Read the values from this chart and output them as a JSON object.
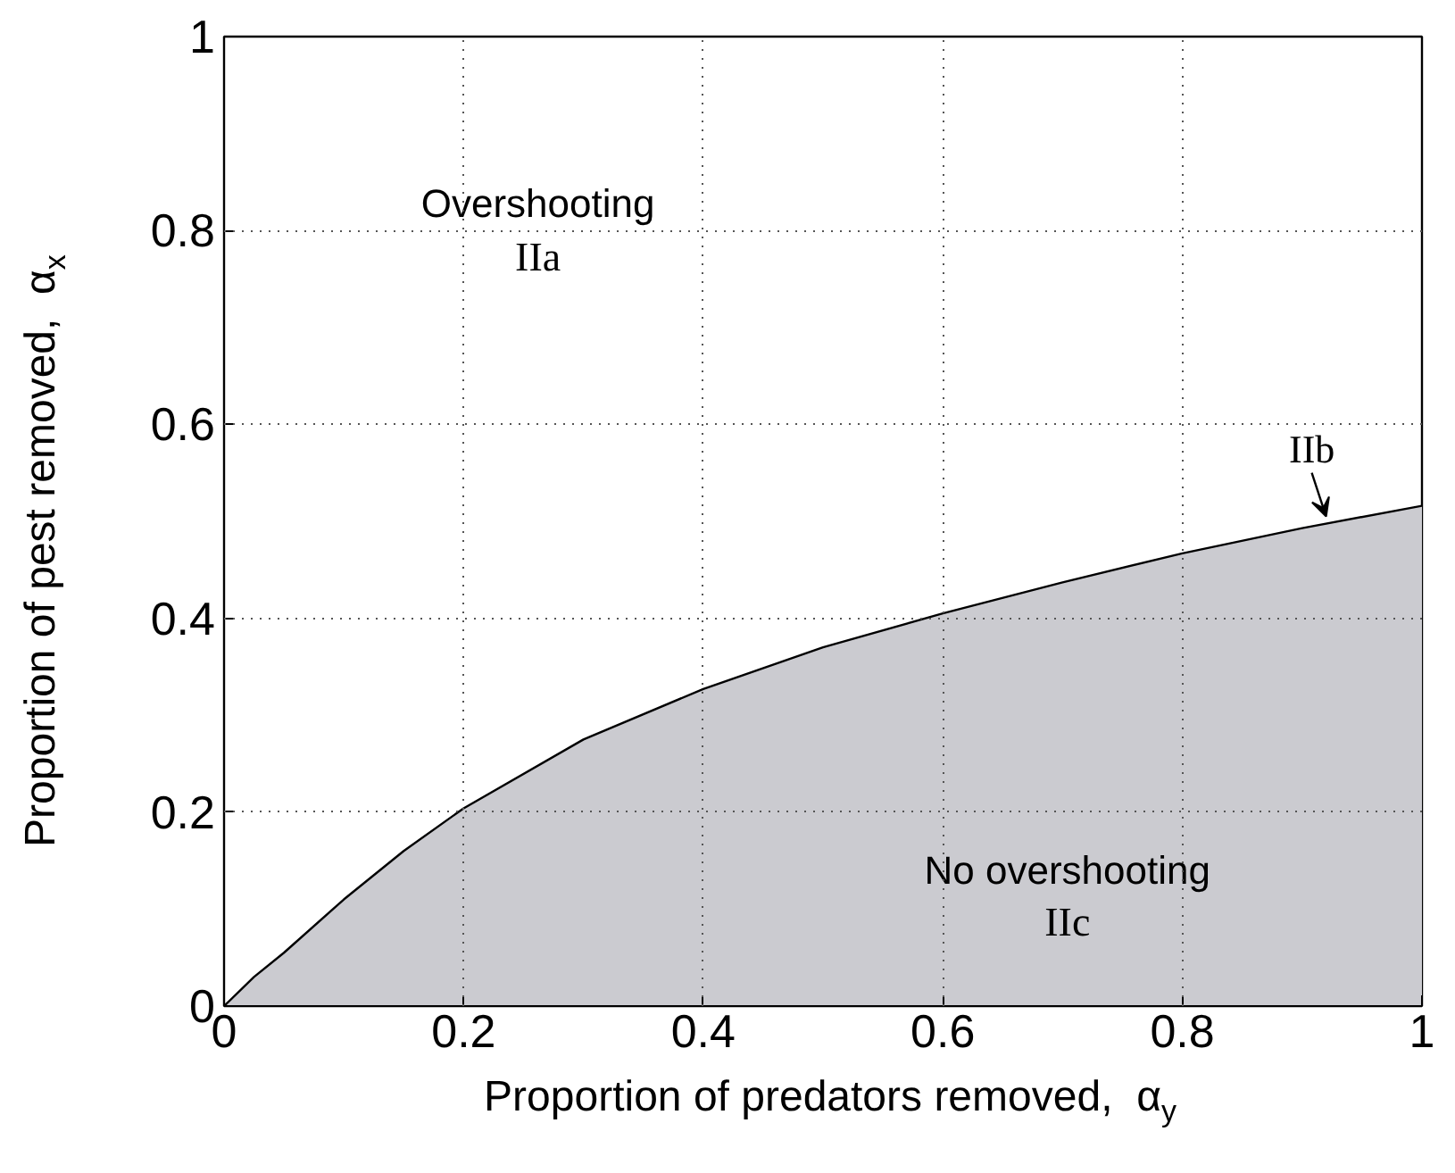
{
  "chart_data": {
    "type": "area",
    "xlabel": "Proportion of predators removed,  α$_{y}$",
    "ylabel": "Proportion of pest removed,  α$_{x}$",
    "x": [
      0,
      0.025,
      0.05,
      0.1,
      0.15,
      0.2,
      0.3,
      0.4,
      0.5,
      0.6,
      0.7,
      0.8,
      0.9,
      1
    ],
    "series": [
      {
        "color": "#cbcbd0",
        "values": [
          0,
          0.03,
          0.055,
          0.11,
          0.16,
          0.204,
          0.275,
          0.327,
          0.37,
          0.405,
          0.437,
          0.467,
          0.493,
          0.516
        ]
      }
    ],
    "xlim": [
      0,
      1
    ],
    "ylim": [
      0,
      1
    ],
    "xticks": [
      0,
      0.2,
      0.4,
      0.6,
      0.8,
      1
    ],
    "yticks": [
      0,
      0.2,
      0.4,
      0.6,
      0.8,
      1
    ],
    "grid": true,
    "annotations": [
      "Overshooting",
      "IIa",
      "No overshooting",
      "IIc",
      {
        "text": "IIb",
        "x": 0.92,
        "y": 0.505
      }
    ]
  }
}
